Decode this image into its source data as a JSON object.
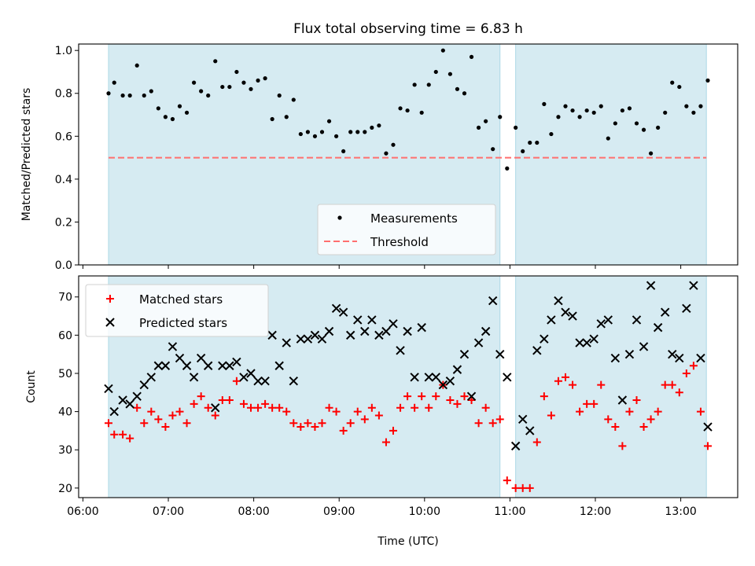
{
  "title": "Flux total observing time = 6.83 h",
  "colors": {
    "band": "#add8e6",
    "threshold": "#ff6f6f",
    "measurement": "#000000",
    "matched": "#ff0000",
    "predicted": "#000000"
  },
  "chart_data": [
    {
      "type": "scatter",
      "ylabel": "Matched/Predicted stars",
      "ylim": [
        0,
        1.03
      ],
      "yticks": [
        "0.0",
        "0.2",
        "0.4",
        "0.6",
        "0.8",
        "1.0"
      ],
      "xlim": [
        "05:57",
        "13:40"
      ],
      "legend": {
        "placement": "lower-center",
        "entries": [
          "Measurements",
          "Threshold"
        ]
      },
      "shaded_windows": [
        [
          "06:18",
          "10:53"
        ],
        [
          "11:04",
          "13:18"
        ]
      ],
      "threshold": {
        "name": "Threshold",
        "value": 0.5,
        "x_start": "06:18",
        "x_end": "13:18"
      },
      "series": [
        {
          "name": "Measurements",
          "points": [
            [
              "06:18",
              0.8
            ],
            [
              "06:22",
              0.85
            ],
            [
              "06:28",
              0.79
            ],
            [
              "06:33",
              0.79
            ],
            [
              "06:38",
              0.93
            ],
            [
              "06:43",
              0.79
            ],
            [
              "06:48",
              0.81
            ],
            [
              "06:53",
              0.73
            ],
            [
              "06:58",
              0.69
            ],
            [
              "07:03",
              0.68
            ],
            [
              "07:08",
              0.74
            ],
            [
              "07:13",
              0.71
            ],
            [
              "07:18",
              0.85
            ],
            [
              "07:23",
              0.81
            ],
            [
              "07:28",
              0.79
            ],
            [
              "07:33",
              0.95
            ],
            [
              "07:38",
              0.83
            ],
            [
              "07:43",
              0.83
            ],
            [
              "07:48",
              0.9
            ],
            [
              "07:53",
              0.85
            ],
            [
              "07:58",
              0.82
            ],
            [
              "08:03",
              0.86
            ],
            [
              "08:08",
              0.87
            ],
            [
              "08:13",
              0.68
            ],
            [
              "08:18",
              0.79
            ],
            [
              "08:23",
              0.69
            ],
            [
              "08:28",
              0.77
            ],
            [
              "08:33",
              0.61
            ],
            [
              "08:38",
              0.62
            ],
            [
              "08:43",
              0.6
            ],
            [
              "08:48",
              0.62
            ],
            [
              "08:53",
              0.67
            ],
            [
              "08:58",
              0.6
            ],
            [
              "09:03",
              0.53
            ],
            [
              "09:08",
              0.62
            ],
            [
              "09:13",
              0.62
            ],
            [
              "09:18",
              0.62
            ],
            [
              "09:23",
              0.64
            ],
            [
              "09:28",
              0.65
            ],
            [
              "09:33",
              0.52
            ],
            [
              "09:38",
              0.56
            ],
            [
              "09:43",
              0.73
            ],
            [
              "09:48",
              0.72
            ],
            [
              "09:53",
              0.84
            ],
            [
              "09:58",
              0.71
            ],
            [
              "10:03",
              0.84
            ],
            [
              "10:08",
              0.9
            ],
            [
              "10:13",
              1.0
            ],
            [
              "10:18",
              0.89
            ],
            [
              "10:23",
              0.82
            ],
            [
              "10:28",
              0.8
            ],
            [
              "10:33",
              0.97
            ],
            [
              "10:38",
              0.64
            ],
            [
              "10:43",
              0.67
            ],
            [
              "10:48",
              0.54
            ],
            [
              "10:53",
              0.69
            ],
            [
              "10:58",
              0.45
            ],
            [
              "11:04",
              0.64
            ],
            [
              "11:09",
              0.53
            ],
            [
              "11:14",
              0.57
            ],
            [
              "11:19",
              0.57
            ],
            [
              "11:24",
              0.75
            ],
            [
              "11:29",
              0.61
            ],
            [
              "11:34",
              0.69
            ],
            [
              "11:39",
              0.74
            ],
            [
              "11:44",
              0.72
            ],
            [
              "11:49",
              0.69
            ],
            [
              "11:54",
              0.72
            ],
            [
              "11:59",
              0.71
            ],
            [
              "12:04",
              0.74
            ],
            [
              "12:09",
              0.59
            ],
            [
              "12:14",
              0.66
            ],
            [
              "12:19",
              0.72
            ],
            [
              "12:24",
              0.73
            ],
            [
              "12:29",
              0.66
            ],
            [
              "12:34",
              0.63
            ],
            [
              "12:39",
              0.52
            ],
            [
              "12:44",
              0.64
            ],
            [
              "12:49",
              0.71
            ],
            [
              "12:54",
              0.85
            ],
            [
              "12:59",
              0.83
            ],
            [
              "13:04",
              0.74
            ],
            [
              "13:09",
              0.71
            ],
            [
              "13:14",
              0.74
            ],
            [
              "13:19",
              0.86
            ]
          ]
        }
      ]
    },
    {
      "type": "scatter",
      "ylabel": "Count",
      "xlabel": "Time (UTC)",
      "ylim": [
        17.5,
        75.5
      ],
      "yticks": [
        "20",
        "30",
        "40",
        "50",
        "60",
        "70"
      ],
      "xlim": [
        "05:57",
        "13:40"
      ],
      "xticks": [
        "06:00",
        "07:00",
        "08:00",
        "09:00",
        "10:00",
        "11:00",
        "12:00",
        "13:00"
      ],
      "legend": {
        "placement": "top-left",
        "entries": [
          "Matched stars",
          "Predicted stars"
        ]
      },
      "shaded_windows": [
        [
          "06:18",
          "10:53"
        ],
        [
          "11:04",
          "13:18"
        ]
      ],
      "series": [
        {
          "name": "Matched stars",
          "points": [
            [
              "06:18",
              37
            ],
            [
              "06:22",
              34
            ],
            [
              "06:28",
              34
            ],
            [
              "06:33",
              33
            ],
            [
              "06:38",
              41
            ],
            [
              "06:43",
              37
            ],
            [
              "06:48",
              40
            ],
            [
              "06:53",
              38
            ],
            [
              "06:58",
              36
            ],
            [
              "07:03",
              39
            ],
            [
              "07:08",
              40
            ],
            [
              "07:13",
              37
            ],
            [
              "07:18",
              42
            ],
            [
              "07:23",
              44
            ],
            [
              "07:28",
              41
            ],
            [
              "07:33",
              39
            ],
            [
              "07:38",
              43
            ],
            [
              "07:43",
              43
            ],
            [
              "07:48",
              48
            ],
            [
              "07:53",
              42
            ],
            [
              "07:58",
              41
            ],
            [
              "08:03",
              41
            ],
            [
              "08:08",
              42
            ],
            [
              "08:13",
              41
            ],
            [
              "08:18",
              41
            ],
            [
              "08:23",
              40
            ],
            [
              "08:28",
              37
            ],
            [
              "08:33",
              36
            ],
            [
              "08:38",
              37
            ],
            [
              "08:43",
              36
            ],
            [
              "08:48",
              37
            ],
            [
              "08:53",
              41
            ],
            [
              "08:58",
              40
            ],
            [
              "09:03",
              35
            ],
            [
              "09:08",
              37
            ],
            [
              "09:13",
              40
            ],
            [
              "09:18",
              38
            ],
            [
              "09:23",
              41
            ],
            [
              "09:28",
              39
            ],
            [
              "09:33",
              32
            ],
            [
              "09:38",
              35
            ],
            [
              "09:43",
              41
            ],
            [
              "09:48",
              44
            ],
            [
              "09:53",
              41
            ],
            [
              "09:58",
              44
            ],
            [
              "10:03",
              41
            ],
            [
              "10:08",
              44
            ],
            [
              "10:13",
              47
            ],
            [
              "10:18",
              43
            ],
            [
              "10:23",
              42
            ],
            [
              "10:28",
              44
            ],
            [
              "10:33",
              43
            ],
            [
              "10:38",
              37
            ],
            [
              "10:43",
              41
            ],
            [
              "10:48",
              37
            ],
            [
              "10:53",
              38
            ],
            [
              "10:58",
              22
            ],
            [
              "11:04",
              20
            ],
            [
              "11:09",
              20
            ],
            [
              "11:14",
              20
            ],
            [
              "11:19",
              32
            ],
            [
              "11:24",
              44
            ],
            [
              "11:29",
              39
            ],
            [
              "11:34",
              48
            ],
            [
              "11:39",
              49
            ],
            [
              "11:44",
              47
            ],
            [
              "11:49",
              40
            ],
            [
              "11:54",
              42
            ],
            [
              "11:59",
              42
            ],
            [
              "12:04",
              47
            ],
            [
              "12:09",
              38
            ],
            [
              "12:14",
              36
            ],
            [
              "12:19",
              31
            ],
            [
              "12:24",
              40
            ],
            [
              "12:29",
              43
            ],
            [
              "12:34",
              36
            ],
            [
              "12:39",
              38
            ],
            [
              "12:44",
              40
            ],
            [
              "12:49",
              47
            ],
            [
              "12:54",
              47
            ],
            [
              "12:59",
              45
            ],
            [
              "13:04",
              50
            ],
            [
              "13:09",
              52
            ],
            [
              "13:14",
              40
            ],
            [
              "13:19",
              31
            ]
          ]
        },
        {
          "name": "Predicted stars",
          "points": [
            [
              "06:18",
              46
            ],
            [
              "06:22",
              40
            ],
            [
              "06:28",
              43
            ],
            [
              "06:33",
              42
            ],
            [
              "06:38",
              44
            ],
            [
              "06:43",
              47
            ],
            [
              "06:48",
              49
            ],
            [
              "06:53",
              52
            ],
            [
              "06:58",
              52
            ],
            [
              "07:03",
              57
            ],
            [
              "07:08",
              54
            ],
            [
              "07:13",
              52
            ],
            [
              "07:18",
              49
            ],
            [
              "07:23",
              54
            ],
            [
              "07:28",
              52
            ],
            [
              "07:33",
              41
            ],
            [
              "07:38",
              52
            ],
            [
              "07:43",
              52
            ],
            [
              "07:48",
              53
            ],
            [
              "07:53",
              49
            ],
            [
              "07:58",
              50
            ],
            [
              "08:03",
              48
            ],
            [
              "08:08",
              48
            ],
            [
              "08:13",
              60
            ],
            [
              "08:18",
              52
            ],
            [
              "08:23",
              58
            ],
            [
              "08:28",
              48
            ],
            [
              "08:33",
              59
            ],
            [
              "08:38",
              59
            ],
            [
              "08:43",
              60
            ],
            [
              "08:48",
              59
            ],
            [
              "08:53",
              61
            ],
            [
              "08:58",
              67
            ],
            [
              "09:03",
              66
            ],
            [
              "09:08",
              60
            ],
            [
              "09:13",
              64
            ],
            [
              "09:18",
              61
            ],
            [
              "09:23",
              64
            ],
            [
              "09:28",
              60
            ],
            [
              "09:33",
              61
            ],
            [
              "09:38",
              63
            ],
            [
              "09:43",
              56
            ],
            [
              "09:48",
              61
            ],
            [
              "09:53",
              49
            ],
            [
              "09:58",
              62
            ],
            [
              "10:03",
              49
            ],
            [
              "10:08",
              49
            ],
            [
              "10:13",
              47
            ],
            [
              "10:18",
              48
            ],
            [
              "10:23",
              51
            ],
            [
              "10:28",
              55
            ],
            [
              "10:33",
              44
            ],
            [
              "10:38",
              58
            ],
            [
              "10:43",
              61
            ],
            [
              "10:48",
              69
            ],
            [
              "10:53",
              55
            ],
            [
              "10:58",
              49
            ],
            [
              "11:04",
              31
            ],
            [
              "11:09",
              38
            ],
            [
              "11:14",
              35
            ],
            [
              "11:19",
              56
            ],
            [
              "11:24",
              59
            ],
            [
              "11:29",
              64
            ],
            [
              "11:34",
              69
            ],
            [
              "11:39",
              66
            ],
            [
              "11:44",
              65
            ],
            [
              "11:49",
              58
            ],
            [
              "11:54",
              58
            ],
            [
              "11:59",
              59
            ],
            [
              "12:04",
              63
            ],
            [
              "12:09",
              64
            ],
            [
              "12:14",
              54
            ],
            [
              "12:19",
              43
            ],
            [
              "12:24",
              55
            ],
            [
              "12:29",
              64
            ],
            [
              "12:34",
              57
            ],
            [
              "12:39",
              73
            ],
            [
              "12:44",
              62
            ],
            [
              "12:49",
              66
            ],
            [
              "12:54",
              55
            ],
            [
              "12:59",
              54
            ],
            [
              "13:04",
              67
            ],
            [
              "13:09",
              73
            ],
            [
              "13:14",
              54
            ],
            [
              "13:19",
              36
            ]
          ]
        }
      ]
    }
  ]
}
